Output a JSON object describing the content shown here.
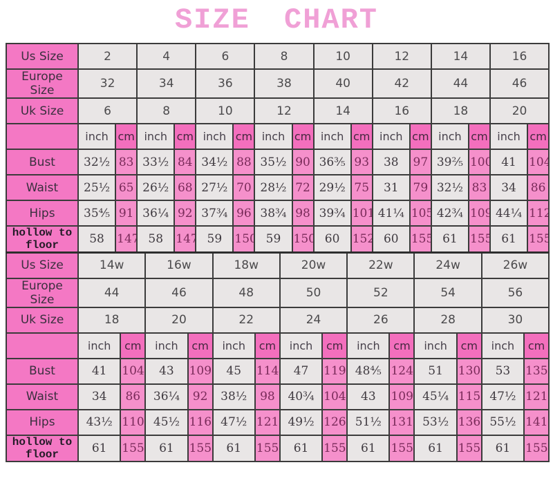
{
  "title": "SIZE CHART",
  "colors": {
    "title_pink": "#f0a0d6",
    "label_pink": "#f478c4",
    "cm_header_pink": "#f36fbd",
    "cm_value_pink": "#f590cb",
    "cell_gray": "#e9e6e6",
    "border": "#3b3b3b",
    "pink_cell_text": "#792a59",
    "gray_cell_text": "#3f3a40"
  },
  "chart_data": {
    "type": "table",
    "title": "SIZE CHART",
    "unit_labels": {
      "inch": "inch",
      "cm": "cm"
    },
    "tables": [
      {
        "name": "standard-sizes",
        "size_rows": [
          {
            "label": "Us Size",
            "values": [
              "2",
              "4",
              "6",
              "8",
              "10",
              "12",
              "14",
              "16"
            ]
          },
          {
            "label": "Europe Size",
            "values": [
              "32",
              "34",
              "36",
              "38",
              "40",
              "42",
              "44",
              "46"
            ]
          },
          {
            "label": "Uk Size",
            "values": [
              "6",
              "8",
              "10",
              "12",
              "14",
              "16",
              "18",
              "20"
            ]
          }
        ],
        "measure_rows": [
          {
            "label": "Bust",
            "mono": false,
            "inch": [
              "32½",
              "33½",
              "34½",
              "35½",
              "36⅗",
              "38",
              "39⅖",
              "41"
            ],
            "cm": [
              "83",
              "84",
              "88",
              "90",
              "93",
              "97",
              "100",
              "104"
            ]
          },
          {
            "label": "Waist",
            "mono": false,
            "inch": [
              "25½",
              "26½",
              "27½",
              "28½",
              "29½",
              "31",
              "32½",
              "34"
            ],
            "cm": [
              "65",
              "68",
              "70",
              "72",
              "75",
              "79",
              "83",
              "86"
            ]
          },
          {
            "label": "Hips",
            "mono": false,
            "inch": [
              "35⅘",
              "36¼",
              "37¾",
              "38¾",
              "39¾",
              "41¼",
              "42¾",
              "44¼"
            ],
            "cm": [
              "91",
              "92",
              "96",
              "98",
              "101",
              "105",
              "109",
              "112"
            ]
          },
          {
            "label": "hollow to floor",
            "mono": true,
            "inch": [
              "58",
              "58",
              "59",
              "59",
              "60",
              "60",
              "61",
              "61"
            ],
            "cm": [
              "147",
              "147",
              "150",
              "150",
              "152",
              "155",
              "155",
              "155"
            ]
          }
        ]
      },
      {
        "name": "plus-sizes",
        "size_rows": [
          {
            "label": "Us Size",
            "values": [
              "14w",
              "16w",
              "18w",
              "20w",
              "22w",
              "24w",
              "26w"
            ]
          },
          {
            "label": "Europe Size",
            "values": [
              "44",
              "46",
              "48",
              "50",
              "52",
              "54",
              "56"
            ]
          },
          {
            "label": "Uk Size",
            "values": [
              "18",
              "20",
              "22",
              "24",
              "26",
              "28",
              "30"
            ]
          }
        ],
        "measure_rows": [
          {
            "label": "Bust",
            "mono": false,
            "inch": [
              "41",
              "43",
              "45",
              "47",
              "48⅘",
              "51",
              "53"
            ],
            "cm": [
              "104",
              "109",
              "114",
              "119",
              "124",
              "130",
              "135"
            ]
          },
          {
            "label": "Waist",
            "mono": false,
            "inch": [
              "34",
              "36¼",
              "38½",
              "40¾",
              "43",
              "45¼",
              "47½"
            ],
            "cm": [
              "86",
              "92",
              "98",
              "104",
              "109",
              "115",
              "121"
            ]
          },
          {
            "label": "Hips",
            "mono": false,
            "inch": [
              "43½",
              "45½",
              "47½",
              "49½",
              "51½",
              "53½",
              "55½"
            ],
            "cm": [
              "110",
              "116",
              "121",
              "126",
              "131",
              "136",
              "141"
            ]
          },
          {
            "label": "hollow to floor",
            "mono": true,
            "inch": [
              "61",
              "61",
              "61",
              "61",
              "61",
              "61",
              "61"
            ],
            "cm": [
              "155",
              "155",
              "155",
              "155",
              "155",
              "155",
              "155"
            ]
          }
        ]
      }
    ]
  }
}
